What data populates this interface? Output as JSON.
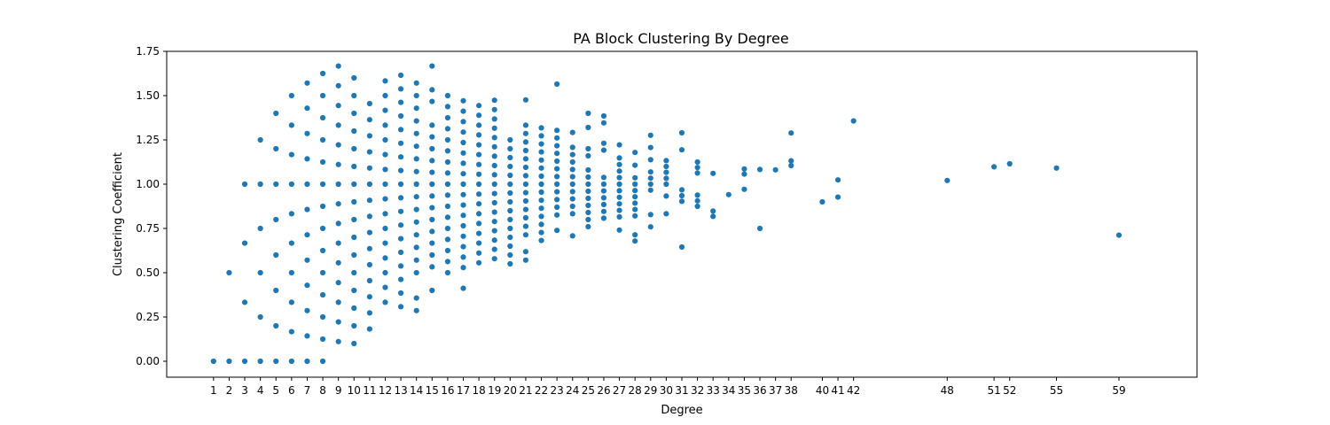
{
  "chart_data": {
    "type": "scatter",
    "title": "PA Block Clustering By Degree",
    "xlabel": "Degree",
    "ylabel": "Clustering Coefficient",
    "xlim": [
      -2,
      64
    ],
    "ylim": [
      -0.09,
      1.75
    ],
    "x_ticks": [
      1,
      2,
      3,
      4,
      5,
      6,
      7,
      8,
      9,
      10,
      11,
      12,
      13,
      14,
      15,
      16,
      17,
      18,
      19,
      20,
      21,
      22,
      23,
      24,
      25,
      26,
      27,
      28,
      29,
      30,
      31,
      32,
      33,
      34,
      35,
      36,
      37,
      38,
      40,
      41,
      42,
      48,
      51,
      52,
      55,
      59
    ],
    "x_tick_labels": [
      "1",
      "2",
      "3",
      "4",
      "5",
      "6",
      "7",
      "8",
      "9",
      "10",
      "11",
      "12",
      "13",
      "14",
      "15",
      "16",
      "17",
      "18",
      "19",
      "20",
      "21",
      "22",
      "23",
      "24",
      "25",
      "26",
      "27",
      "28",
      "29",
      "30",
      "31",
      "32",
      "33",
      "34",
      "35",
      "36",
      "37",
      "38",
      "40",
      "41",
      "42",
      "48",
      "51",
      "52",
      "55",
      "59"
    ],
    "y_ticks": [
      0.0,
      0.25,
      0.5,
      0.75,
      1.0,
      1.25,
      1.5,
      1.75
    ],
    "y_tick_labels": [
      "0.00",
      "0.25",
      "0.50",
      "0.75",
      "1.00",
      "1.25",
      "1.50",
      "1.75"
    ],
    "grid": false,
    "color": "#1f77b4",
    "points": [
      [
        1,
        0.0
      ],
      [
        2,
        0.0
      ],
      [
        2,
        0.5
      ],
      [
        3,
        0.0
      ],
      [
        3,
        0.333
      ],
      [
        3,
        0.667
      ],
      [
        3,
        1.0
      ],
      [
        4,
        0.0
      ],
      [
        4,
        0.25
      ],
      [
        4,
        0.5
      ],
      [
        4,
        0.75
      ],
      [
        4,
        1.0
      ],
      [
        4,
        1.25
      ],
      [
        5,
        0.0
      ],
      [
        5,
        0.2
      ],
      [
        5,
        0.4
      ],
      [
        5,
        0.6
      ],
      [
        5,
        0.8
      ],
      [
        5,
        1.0
      ],
      [
        5,
        1.2
      ],
      [
        5,
        1.4
      ],
      [
        6,
        0.0
      ],
      [
        6,
        0.167
      ],
      [
        6,
        0.333
      ],
      [
        6,
        0.5
      ],
      [
        6,
        0.667
      ],
      [
        6,
        0.833
      ],
      [
        6,
        1.0
      ],
      [
        6,
        1.167
      ],
      [
        6,
        1.333
      ],
      [
        6,
        1.5
      ],
      [
        7,
        0.0
      ],
      [
        7,
        0.143
      ],
      [
        7,
        0.286
      ],
      [
        7,
        0.429
      ],
      [
        7,
        0.571
      ],
      [
        7,
        0.714
      ],
      [
        7,
        0.857
      ],
      [
        7,
        1.0
      ],
      [
        7,
        1.143
      ],
      [
        7,
        1.286
      ],
      [
        7,
        1.429
      ],
      [
        7,
        1.571
      ],
      [
        8,
        0.0
      ],
      [
        8,
        0.125
      ],
      [
        8,
        0.25
      ],
      [
        8,
        0.375
      ],
      [
        8,
        0.5
      ],
      [
        8,
        0.625
      ],
      [
        8,
        0.75
      ],
      [
        8,
        0.875
      ],
      [
        8,
        1.0
      ],
      [
        8,
        1.125
      ],
      [
        8,
        1.25
      ],
      [
        8,
        1.375
      ],
      [
        8,
        1.5
      ],
      [
        8,
        1.625
      ],
      [
        9,
        0.111
      ],
      [
        9,
        0.222
      ],
      [
        9,
        0.333
      ],
      [
        9,
        0.444
      ],
      [
        9,
        0.556
      ],
      [
        9,
        0.667
      ],
      [
        9,
        0.778
      ],
      [
        9,
        0.889
      ],
      [
        9,
        1.0
      ],
      [
        9,
        1.111
      ],
      [
        9,
        1.222
      ],
      [
        9,
        1.333
      ],
      [
        9,
        1.444
      ],
      [
        9,
        1.556
      ],
      [
        9,
        1.667
      ],
      [
        10,
        0.1
      ],
      [
        10,
        0.2
      ],
      [
        10,
        0.3
      ],
      [
        10,
        0.4
      ],
      [
        10,
        0.5
      ],
      [
        10,
        0.6
      ],
      [
        10,
        0.7
      ],
      [
        10,
        0.8
      ],
      [
        10,
        0.9
      ],
      [
        10,
        1.0
      ],
      [
        10,
        1.1
      ],
      [
        10,
        1.2
      ],
      [
        10,
        1.3
      ],
      [
        10,
        1.4
      ],
      [
        10,
        1.5
      ],
      [
        10,
        1.6
      ],
      [
        11,
        0.182
      ],
      [
        11,
        0.273
      ],
      [
        11,
        0.364
      ],
      [
        11,
        0.455
      ],
      [
        11,
        0.545
      ],
      [
        11,
        0.636
      ],
      [
        11,
        0.727
      ],
      [
        11,
        0.818
      ],
      [
        11,
        0.909
      ],
      [
        11,
        1.0
      ],
      [
        11,
        1.091
      ],
      [
        11,
        1.182
      ],
      [
        11,
        1.273
      ],
      [
        11,
        1.364
      ],
      [
        11,
        1.455
      ],
      [
        12,
        0.333
      ],
      [
        12,
        0.417
      ],
      [
        12,
        0.5
      ],
      [
        12,
        0.583
      ],
      [
        12,
        0.667
      ],
      [
        12,
        0.75
      ],
      [
        12,
        0.833
      ],
      [
        12,
        0.917
      ],
      [
        12,
        1.0
      ],
      [
        12,
        1.083
      ],
      [
        12,
        1.167
      ],
      [
        12,
        1.25
      ],
      [
        12,
        1.333
      ],
      [
        12,
        1.417
      ],
      [
        12,
        1.5
      ],
      [
        12,
        1.583
      ],
      [
        13,
        0.308
      ],
      [
        13,
        0.385
      ],
      [
        13,
        0.462
      ],
      [
        13,
        0.538
      ],
      [
        13,
        0.615
      ],
      [
        13,
        0.692
      ],
      [
        13,
        0.769
      ],
      [
        13,
        0.846
      ],
      [
        13,
        0.923
      ],
      [
        13,
        1.0
      ],
      [
        13,
        1.077
      ],
      [
        13,
        1.154
      ],
      [
        13,
        1.231
      ],
      [
        13,
        1.308
      ],
      [
        13,
        1.385
      ],
      [
        13,
        1.462
      ],
      [
        13,
        1.538
      ],
      [
        13,
        1.615
      ],
      [
        14,
        0.286
      ],
      [
        14,
        0.357
      ],
      [
        14,
        0.5
      ],
      [
        14,
        0.571
      ],
      [
        14,
        0.643
      ],
      [
        14,
        0.714
      ],
      [
        14,
        0.786
      ],
      [
        14,
        0.857
      ],
      [
        14,
        0.929
      ],
      [
        14,
        1.0
      ],
      [
        14,
        1.071
      ],
      [
        14,
        1.143
      ],
      [
        14,
        1.214
      ],
      [
        14,
        1.286
      ],
      [
        14,
        1.357
      ],
      [
        14,
        1.429
      ],
      [
        14,
        1.5
      ],
      [
        14,
        1.571
      ],
      [
        15,
        0.4
      ],
      [
        15,
        0.533
      ],
      [
        15,
        0.6
      ],
      [
        15,
        0.667
      ],
      [
        15,
        0.733
      ],
      [
        15,
        0.8
      ],
      [
        15,
        0.867
      ],
      [
        15,
        0.933
      ],
      [
        15,
        1.0
      ],
      [
        15,
        1.067
      ],
      [
        15,
        1.133
      ],
      [
        15,
        1.2
      ],
      [
        15,
        1.267
      ],
      [
        15,
        1.333
      ],
      [
        15,
        1.467
      ],
      [
        15,
        1.533
      ],
      [
        15,
        1.667
      ],
      [
        16,
        0.5
      ],
      [
        16,
        0.563
      ],
      [
        16,
        0.625
      ],
      [
        16,
        0.688
      ],
      [
        16,
        0.75
      ],
      [
        16,
        0.813
      ],
      [
        16,
        0.875
      ],
      [
        16,
        0.938
      ],
      [
        16,
        1.0
      ],
      [
        16,
        1.063
      ],
      [
        16,
        1.125
      ],
      [
        16,
        1.188
      ],
      [
        16,
        1.25
      ],
      [
        16,
        1.313
      ],
      [
        16,
        1.375
      ],
      [
        16,
        1.438
      ],
      [
        16,
        1.5
      ],
      [
        17,
        0.412
      ],
      [
        17,
        0.529
      ],
      [
        17,
        0.588
      ],
      [
        17,
        0.647
      ],
      [
        17,
        0.706
      ],
      [
        17,
        0.765
      ],
      [
        17,
        0.824
      ],
      [
        17,
        0.882
      ],
      [
        17,
        0.941
      ],
      [
        17,
        1.0
      ],
      [
        17,
        1.059
      ],
      [
        17,
        1.118
      ],
      [
        17,
        1.176
      ],
      [
        17,
        1.235
      ],
      [
        17,
        1.294
      ],
      [
        17,
        1.353
      ],
      [
        17,
        1.412
      ],
      [
        17,
        1.471
      ],
      [
        18,
        0.556
      ],
      [
        18,
        0.611
      ],
      [
        18,
        0.667
      ],
      [
        18,
        0.722
      ],
      [
        18,
        0.778
      ],
      [
        18,
        0.833
      ],
      [
        18,
        0.889
      ],
      [
        18,
        0.944
      ],
      [
        18,
        1.0
      ],
      [
        18,
        1.056
      ],
      [
        18,
        1.111
      ],
      [
        18,
        1.167
      ],
      [
        18,
        1.222
      ],
      [
        18,
        1.278
      ],
      [
        18,
        1.333
      ],
      [
        18,
        1.389
      ],
      [
        18,
        1.444
      ],
      [
        19,
        0.579
      ],
      [
        19,
        0.632
      ],
      [
        19,
        0.684
      ],
      [
        19,
        0.737
      ],
      [
        19,
        0.789
      ],
      [
        19,
        0.842
      ],
      [
        19,
        0.895
      ],
      [
        19,
        0.947
      ],
      [
        19,
        1.0
      ],
      [
        19,
        1.053
      ],
      [
        19,
        1.105
      ],
      [
        19,
        1.158
      ],
      [
        19,
        1.211
      ],
      [
        19,
        1.263
      ],
      [
        19,
        1.316
      ],
      [
        19,
        1.368
      ],
      [
        19,
        1.421
      ],
      [
        19,
        1.474
      ],
      [
        20,
        0.55
      ],
      [
        20,
        0.6
      ],
      [
        20,
        0.65
      ],
      [
        20,
        0.7
      ],
      [
        20,
        0.75
      ],
      [
        20,
        0.8
      ],
      [
        20,
        0.85
      ],
      [
        20,
        0.9
      ],
      [
        20,
        0.95
      ],
      [
        20,
        1.0
      ],
      [
        20,
        1.05
      ],
      [
        20,
        1.1
      ],
      [
        20,
        1.15
      ],
      [
        20,
        1.2
      ],
      [
        20,
        1.25
      ],
      [
        21,
        0.571
      ],
      [
        21,
        0.619
      ],
      [
        21,
        0.714
      ],
      [
        21,
        0.762
      ],
      [
        21,
        0.81
      ],
      [
        21,
        0.857
      ],
      [
        21,
        0.905
      ],
      [
        21,
        0.952
      ],
      [
        21,
        1.0
      ],
      [
        21,
        1.048
      ],
      [
        21,
        1.095
      ],
      [
        21,
        1.143
      ],
      [
        21,
        1.19
      ],
      [
        21,
        1.238
      ],
      [
        21,
        1.286
      ],
      [
        21,
        1.333
      ],
      [
        21,
        1.476
      ],
      [
        22,
        0.682
      ],
      [
        22,
        0.727
      ],
      [
        22,
        0.773
      ],
      [
        22,
        0.818
      ],
      [
        22,
        0.864
      ],
      [
        22,
        0.909
      ],
      [
        22,
        0.955
      ],
      [
        22,
        1.0
      ],
      [
        22,
        1.045
      ],
      [
        22,
        1.091
      ],
      [
        22,
        1.136
      ],
      [
        22,
        1.182
      ],
      [
        22,
        1.227
      ],
      [
        22,
        1.273
      ],
      [
        22,
        1.318
      ],
      [
        23,
        0.739
      ],
      [
        23,
        0.826
      ],
      [
        23,
        0.87
      ],
      [
        23,
        0.913
      ],
      [
        23,
        0.957
      ],
      [
        23,
        1.0
      ],
      [
        23,
        1.043
      ],
      [
        23,
        1.087
      ],
      [
        23,
        1.13
      ],
      [
        23,
        1.174
      ],
      [
        23,
        1.217
      ],
      [
        23,
        1.261
      ],
      [
        23,
        1.304
      ],
      [
        23,
        1.565
      ],
      [
        24,
        0.708
      ],
      [
        24,
        0.833
      ],
      [
        24,
        0.875
      ],
      [
        24,
        0.917
      ],
      [
        24,
        0.958
      ],
      [
        24,
        1.0
      ],
      [
        24,
        1.042
      ],
      [
        24,
        1.083
      ],
      [
        24,
        1.125
      ],
      [
        24,
        1.167
      ],
      [
        24,
        1.208
      ],
      [
        24,
        1.292
      ],
      [
        25,
        0.76
      ],
      [
        25,
        0.8
      ],
      [
        25,
        0.84
      ],
      [
        25,
        0.88
      ],
      [
        25,
        0.92
      ],
      [
        25,
        0.96
      ],
      [
        25,
        1.0
      ],
      [
        25,
        1.04
      ],
      [
        25,
        1.08
      ],
      [
        25,
        1.16
      ],
      [
        25,
        1.2
      ],
      [
        25,
        1.32
      ],
      [
        25,
        1.4
      ],
      [
        26,
        0.808
      ],
      [
        26,
        0.846
      ],
      [
        26,
        0.885
      ],
      [
        26,
        0.923
      ],
      [
        26,
        0.962
      ],
      [
        26,
        1.0
      ],
      [
        26,
        1.038
      ],
      [
        26,
        1.192
      ],
      [
        26,
        1.231
      ],
      [
        26,
        1.346
      ],
      [
        26,
        1.385
      ],
      [
        27,
        0.741
      ],
      [
        27,
        0.815
      ],
      [
        27,
        0.852
      ],
      [
        27,
        0.889
      ],
      [
        27,
        0.926
      ],
      [
        27,
        0.963
      ],
      [
        27,
        1.0
      ],
      [
        27,
        1.037
      ],
      [
        27,
        1.074
      ],
      [
        27,
        1.111
      ],
      [
        27,
        1.148
      ],
      [
        27,
        1.222
      ],
      [
        28,
        0.679
      ],
      [
        28,
        0.714
      ],
      [
        28,
        0.821
      ],
      [
        28,
        0.857
      ],
      [
        28,
        0.893
      ],
      [
        28,
        0.929
      ],
      [
        28,
        0.964
      ],
      [
        28,
        1.0
      ],
      [
        28,
        1.036
      ],
      [
        28,
        1.107
      ],
      [
        28,
        1.179
      ],
      [
        29,
        0.759
      ],
      [
        29,
        0.828
      ],
      [
        29,
        0.966
      ],
      [
        29,
        1.0
      ],
      [
        29,
        1.034
      ],
      [
        29,
        1.069
      ],
      [
        29,
        1.138
      ],
      [
        29,
        1.207
      ],
      [
        29,
        1.276
      ],
      [
        30,
        0.833
      ],
      [
        30,
        0.933
      ],
      [
        30,
        1.0
      ],
      [
        30,
        1.033
      ],
      [
        30,
        1.067
      ],
      [
        30,
        1.1
      ],
      [
        30,
        1.133
      ],
      [
        31,
        0.645
      ],
      [
        31,
        0.903
      ],
      [
        31,
        0.935
      ],
      [
        31,
        0.968
      ],
      [
        31,
        1.194
      ],
      [
        31,
        1.29
      ],
      [
        32,
        0.875
      ],
      [
        32,
        0.906
      ],
      [
        32,
        0.938
      ],
      [
        32,
        1.063
      ],
      [
        32,
        1.094
      ],
      [
        32,
        1.125
      ],
      [
        33,
        0.818
      ],
      [
        33,
        0.848
      ],
      [
        33,
        1.061
      ],
      [
        34,
        0.941
      ],
      [
        35,
        0.971
      ],
      [
        35,
        1.057
      ],
      [
        35,
        1.086
      ],
      [
        36,
        0.75
      ],
      [
        36,
        1.083
      ],
      [
        37,
        1.081
      ],
      [
        38,
        1.105
      ],
      [
        38,
        1.132
      ],
      [
        38,
        1.289
      ],
      [
        40,
        0.9
      ],
      [
        41,
        0.927
      ],
      [
        41,
        1.024
      ],
      [
        42,
        1.357
      ],
      [
        48,
        1.021
      ],
      [
        51,
        1.098
      ],
      [
        52,
        1.115
      ],
      [
        55,
        1.091
      ],
      [
        59,
        0.712
      ]
    ]
  }
}
